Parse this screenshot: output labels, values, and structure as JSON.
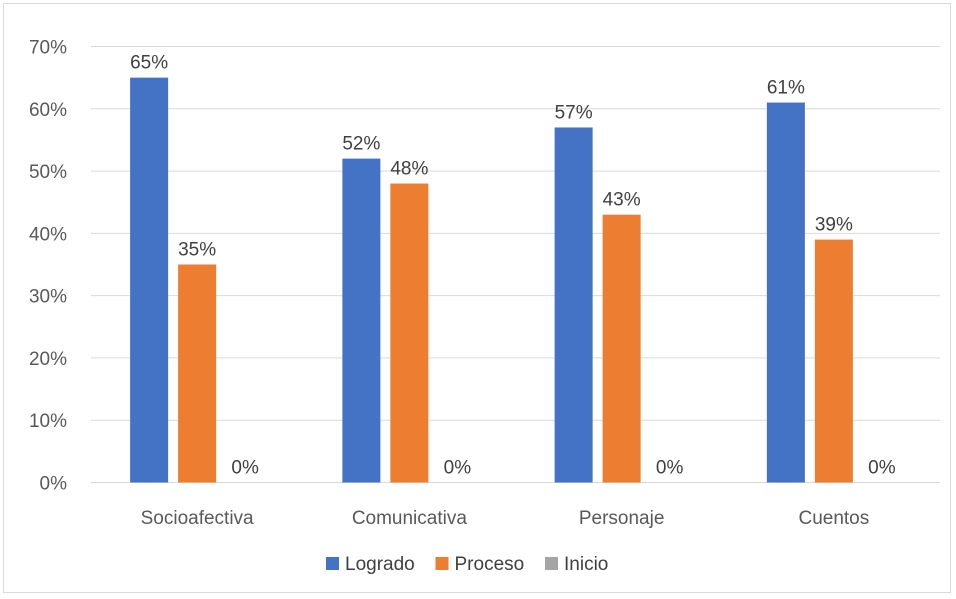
{
  "chart_data": {
    "type": "bar",
    "categories": [
      "Socioafectiva",
      "Comunicativa",
      "Personaje",
      "Cuentos"
    ],
    "series": [
      {
        "name": "Logrado",
        "values": [
          65,
          52,
          57,
          61
        ],
        "labels": [
          "65%",
          "52%",
          "57%",
          "61%"
        ],
        "color": "#4472c4"
      },
      {
        "name": "Proceso",
        "values": [
          35,
          48,
          43,
          39
        ],
        "labels": [
          "35%",
          "48%",
          "43%",
          "39%"
        ],
        "color": "#ed7d31"
      },
      {
        "name": "Inicio",
        "values": [
          0,
          0,
          0,
          0
        ],
        "labels": [
          "0%",
          "0%",
          "0%",
          "0%"
        ],
        "color": "#a5a5a5"
      }
    ],
    "y_ticks": [
      "0%",
      "10%",
      "20%",
      "30%",
      "40%",
      "50%",
      "60%",
      "70%"
    ],
    "ylim": [
      0,
      70
    ],
    "grid": true,
    "legend": "bottom",
    "gridline_color": "#d9d9d9"
  }
}
